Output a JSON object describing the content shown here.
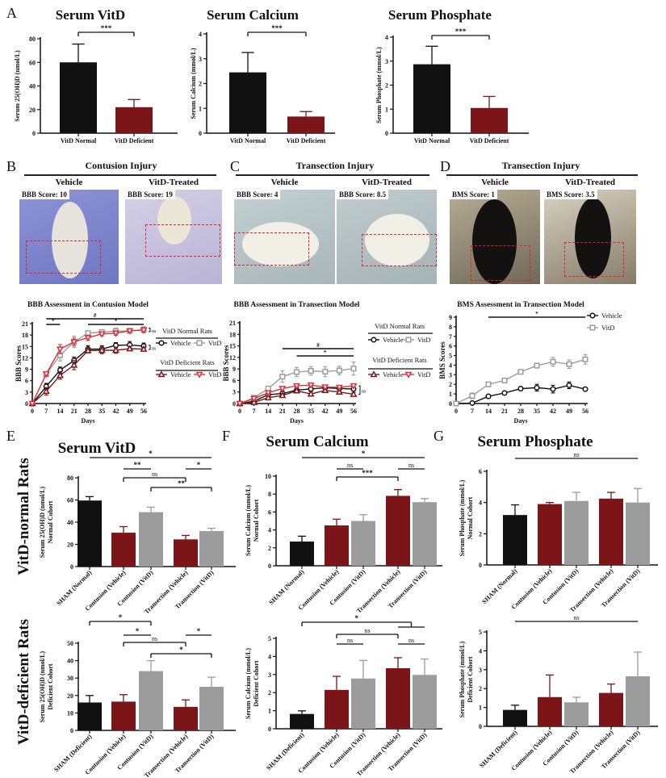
{
  "panel_letters": [
    "A",
    "B",
    "C",
    "D",
    "E",
    "F",
    "G"
  ],
  "row_labels": [
    "VitD-normal Rats",
    "VitD-deficient Rats"
  ],
  "colors": {
    "normal": "#111111",
    "deficient": "#7b1518",
    "vitd_grey": "#9c9c9c",
    "vitd_red": "#d8343c",
    "roi": "#e0202a"
  },
  "photos": [
    {
      "heading": "Contusion Injury",
      "items": [
        {
          "condition": "Vehicle",
          "score": "BBB Score: 10"
        },
        {
          "condition": "VitD-Treated",
          "score": "BBB Score: 19"
        }
      ]
    },
    {
      "heading": "Transection Injury",
      "items": [
        {
          "condition": "Vehicle",
          "score": "BBB Score: 4"
        },
        {
          "condition": "VitD-Treated",
          "score": "BBB Score: 8.5"
        }
      ]
    },
    {
      "heading": "Transection Injury",
      "items": [
        {
          "condition": "Vehicle",
          "score": "BMS Score: 1"
        },
        {
          "condition": "VitD-Treated",
          "score": "BMS Score: 3.5"
        }
      ]
    }
  ],
  "chart_data": [
    {
      "type": "bar",
      "title": "Serum VitD",
      "ylabel": [
        "Serum 25(OH)D (nmol/L)"
      ],
      "categories": [
        "VitD Normal",
        "VitD Deficient"
      ],
      "values": [
        60,
        22
      ],
      "errors": [
        15.5,
        6.5
      ],
      "bar_colors": [
        "normal",
        "deficient"
      ],
      "ylim": [
        0,
        80
      ],
      "yticks": [
        0,
        20,
        40,
        60,
        80
      ],
      "annotations": [
        {
          "from": 0,
          "to": 1,
          "label": "***",
          "style": "bracket"
        }
      ]
    },
    {
      "type": "bar",
      "title": "Serum Calcium",
      "ylabel": [
        "Serum Calcium (mmol/L)"
      ],
      "categories": [
        "VitD Normal",
        "VitD Deficient"
      ],
      "values": [
        2.45,
        0.67
      ],
      "errors": [
        0.8,
        0.2
      ],
      "bar_colors": [
        "normal",
        "deficient"
      ],
      "ylim": [
        0,
        4
      ],
      "yticks": [
        0,
        1,
        2,
        3,
        4
      ],
      "annotations": [
        {
          "from": 0,
          "to": 1,
          "label": "***",
          "style": "bracket"
        }
      ]
    },
    {
      "type": "bar",
      "title": "Serum Phosphate",
      "ylabel": [
        "Serum Phosphate (mmol/L)"
      ],
      "categories": [
        "VitD Normal",
        "VitD Deficient"
      ],
      "values": [
        2.87,
        1.05
      ],
      "errors": [
        0.75,
        0.48
      ],
      "bar_colors": [
        "normal",
        "deficient"
      ],
      "ylim": [
        0,
        4
      ],
      "yticks": [
        0,
        1,
        2,
        3,
        4
      ],
      "annotations": [
        {
          "from": 0,
          "to": 1,
          "label": "***",
          "style": "bracket"
        }
      ]
    },
    {
      "type": "line",
      "title": "BBB Assessment in Contusion Model",
      "xlabel": "Days",
      "ylabel": "BBB Scores",
      "x": [
        0,
        7,
        14,
        21,
        28,
        35,
        42,
        49,
        56
      ],
      "xlim": [
        0,
        56
      ],
      "ylim": [
        0,
        21
      ],
      "yticks": [
        0,
        3,
        6,
        9,
        12,
        15,
        18,
        21
      ],
      "legend_groups": [
        {
          "title": "VitD Normal Rats",
          "series": [
            0,
            1
          ]
        },
        {
          "title": "VitD Deficient Rats",
          "series": [
            2,
            3
          ]
        }
      ],
      "series": [
        {
          "name": "Vehicle",
          "color": "normal",
          "marker": "circle",
          "y": [
            0,
            4.5,
            8.8,
            11.3,
            14.3,
            14.3,
            15.3,
            15.4,
            15.1
          ],
          "err": [
            0.3,
            0.8,
            0.8,
            0.9,
            0.9,
            0.9,
            0.7,
            0.9,
            0.8
          ]
        },
        {
          "name": "VitD",
          "color": "vitd_grey",
          "marker": "square",
          "y": [
            0,
            7.7,
            12.7,
            16.2,
            18.5,
            18.8,
            19.0,
            19.1,
            19.4
          ],
          "err": [
            0.3,
            0.6,
            1.5,
            1.5,
            0.5,
            0.6,
            0.8,
            0.5,
            0.8
          ]
        },
        {
          "name": "Vehicle",
          "color": "deficient",
          "marker": "triangle",
          "y": [
            0,
            3.2,
            7.4,
            10.1,
            13.9,
            14.0,
            14.0,
            14.4,
            14.3
          ],
          "err": [
            0.3,
            1.0,
            1.0,
            1.2,
            0.6,
            0.9,
            0.8,
            0.5,
            0.5
          ]
        },
        {
          "name": "VitD",
          "color": "vitd_red",
          "marker": "triangle-down",
          "y": [
            0,
            7.8,
            14.3,
            16.2,
            17.3,
            18.3,
            18.5,
            19.1,
            19.3
          ],
          "err": [
            0.3,
            0.6,
            1.2,
            1.0,
            0.7,
            0.5,
            0.6,
            0.5,
            0.6
          ]
        }
      ],
      "annotations": [
        {
          "from_x": 7,
          "to_x": 14,
          "label": "*"
        },
        {
          "from_x": 7,
          "to_x": 56,
          "label": "#"
        },
        {
          "from_x": 28,
          "to_x": 56,
          "label": "*"
        }
      ],
      "side_annotations": [
        {
          "y_range": [
            18.9,
            19.8
          ],
          "label": "ns"
        },
        {
          "y_range": [
            14.2,
            15.3
          ],
          "label": "ns"
        }
      ]
    },
    {
      "type": "line",
      "title": "BBB Assessment in Transection Model",
      "xlabel": "Days",
      "ylabel": "BBB Scores",
      "x": [
        0,
        7,
        14,
        21,
        28,
        35,
        42,
        49,
        56
      ],
      "xlim": [
        0,
        56
      ],
      "ylim": [
        0,
        21
      ],
      "yticks": [
        0,
        3,
        6,
        9,
        12,
        15,
        18,
        21
      ],
      "legend_groups": [
        {
          "title": "VitD Normal Rats",
          "series": [
            0,
            1
          ]
        },
        {
          "title": "VitD Deficient Rats",
          "series": [
            2,
            3
          ]
        }
      ],
      "series": [
        {
          "name": "Vehicle",
          "color": "normal",
          "marker": "circle",
          "y": [
            0,
            0.6,
            2.3,
            2.6,
            3.5,
            3.8,
            4.1,
            3.9,
            3.8
          ],
          "err": [
            0.2,
            0.3,
            0.5,
            0.6,
            0.5,
            0.6,
            0.5,
            0.5,
            0.5
          ]
        },
        {
          "name": "VitD",
          "color": "vitd_grey",
          "marker": "square",
          "y": [
            0,
            1.5,
            3.9,
            7.0,
            8.2,
            8.5,
            8.3,
            8.6,
            9.1
          ],
          "err": [
            0.2,
            0.4,
            0.5,
            1.5,
            1.2,
            1.1,
            1.3,
            1.1,
            1.7
          ]
        },
        {
          "name": "Vehicle",
          "color": "deficient",
          "marker": "triangle",
          "y": [
            0,
            0.3,
            1.5,
            2.1,
            3.3,
            2.5,
            3.4,
            3.0,
            2.4
          ],
          "err": [
            0.2,
            0.3,
            0.4,
            0.5,
            0.5,
            0.6,
            0.5,
            0.5,
            0.5
          ]
        },
        {
          "name": "VitD",
          "color": "vitd_red",
          "marker": "triangle-down",
          "y": [
            0,
            1.3,
            2.8,
            3.9,
            4.6,
            4.8,
            4.3,
            4.2,
            4.6
          ],
          "err": [
            0.2,
            0.3,
            0.4,
            0.4,
            0.4,
            0.4,
            0.4,
            0.4,
            0.4
          ]
        }
      ],
      "annotations": [
        {
          "from_x": 21,
          "to_x": 56,
          "label": "#"
        },
        {
          "from_x": 28,
          "to_x": 56,
          "label": "*"
        }
      ],
      "side_annotations": [
        {
          "y_range": [
            2.4,
            4.6
          ],
          "label": "ns"
        }
      ]
    },
    {
      "type": "line",
      "title": "BMS Assessment in Transection Model",
      "xlabel": "Days",
      "ylabel": "BMS Scores",
      "x": [
        0,
        7,
        14,
        21,
        28,
        35,
        42,
        49,
        56
      ],
      "xlim": [
        0,
        56
      ],
      "ylim": [
        0,
        9
      ],
      "yticks": [
        0,
        1,
        2,
        3,
        4,
        5,
        6,
        7,
        8,
        9
      ],
      "legend_groups": [
        {
          "title": "",
          "series": [
            0,
            1
          ]
        }
      ],
      "series": [
        {
          "name": "Vehicle",
          "color": "normal",
          "marker": "circle",
          "y": [
            0,
            0.05,
            0.75,
            1.1,
            1.55,
            1.65,
            1.5,
            1.9,
            1.5
          ],
          "err": [
            0.05,
            0.1,
            0.2,
            0.1,
            0.1,
            0.35,
            0.4,
            0.35,
            0.15
          ]
        },
        {
          "name": "VitD",
          "color": "vitd_grey",
          "marker": "square",
          "y": [
            0,
            0.8,
            2.0,
            2.4,
            3.3,
            3.95,
            4.35,
            4.1,
            4.6
          ],
          "err": [
            0.05,
            0.3,
            0.2,
            0.1,
            0.2,
            0.2,
            0.45,
            0.45,
            0.5
          ]
        }
      ],
      "annotations": [
        {
          "from_x": 14,
          "to_x": 56,
          "label": "*"
        }
      ],
      "side_annotations": []
    },
    {
      "type": "bar",
      "title": "Serum VitD",
      "ylabel": [
        "Serum 25(OH)D (nmol/L)",
        "Normal Cohort"
      ],
      "categories": [
        "SHAM (Normal)",
        "Contusion (Vehicle)",
        "Contusion (VitD)",
        "Transection (Vehicle)",
        "Transection (VitD)"
      ],
      "values": [
        59.5,
        30.5,
        49,
        24.5,
        32
      ],
      "errors": [
        3.5,
        5.5,
        4.5,
        3.5,
        2.5
      ],
      "bar_colors": [
        "normal",
        "deficient",
        "vitd_grey",
        "deficient",
        "vitd_grey"
      ],
      "ylim": [
        0,
        80
      ],
      "yticks": [
        0,
        20,
        40,
        60,
        80
      ],
      "annotations": [
        {
          "from": 0,
          "to": 4,
          "label": "*",
          "style": "line"
        },
        {
          "from": 1,
          "to": 2,
          "label": "**",
          "style": "line"
        },
        {
          "from": 3,
          "to": 4,
          "label": "*",
          "style": "line"
        },
        {
          "from": 1,
          "to": 3,
          "label": "ns",
          "style": "bracket"
        },
        {
          "from": 2,
          "to": 4,
          "label": "**",
          "style": "bracket"
        }
      ]
    },
    {
      "type": "bar",
      "title": "Serum Calcium",
      "ylabel": [
        "Serum Calcium (mmol/L)",
        "Normal Cohort"
      ],
      "categories": [
        "SHAM (Normal)",
        "Contusion (Vehicle)",
        "Contusion (VitD)",
        "Transection (Vehicle)",
        "Transection (VitD)"
      ],
      "values": [
        2.7,
        4.5,
        5.0,
        7.8,
        7.1
      ],
      "errors": [
        0.6,
        0.7,
        0.7,
        0.7,
        0.4
      ],
      "bar_colors": [
        "normal",
        "deficient",
        "vitd_grey",
        "deficient",
        "vitd_grey"
      ],
      "ylim": [
        0,
        10
      ],
      "yticks": [
        0,
        2,
        4,
        6,
        8,
        10
      ],
      "annotations": [
        {
          "from": 0,
          "to": 4,
          "label": "*",
          "style": "line"
        },
        {
          "from": 1,
          "to": 2,
          "label": "ns",
          "style": "line"
        },
        {
          "from": 3,
          "to": 4,
          "label": "ns",
          "style": "line"
        },
        {
          "from": 1,
          "to": 3,
          "label": "***",
          "style": "bracket"
        }
      ]
    },
    {
      "type": "bar",
      "title": "Serum Phosphate",
      "ylabel": [
        "Serum Phosphate (mmol/L)",
        "Normal Cohort"
      ],
      "categories": [
        "SHAM (Normal)",
        "Contusion (Vehicle)",
        "Contusion (VitD)",
        "Transection (Vehicle)",
        "Transection (VitD)"
      ],
      "values": [
        3.2,
        3.9,
        4.1,
        4.25,
        4.0
      ],
      "errors": [
        0.65,
        0.1,
        0.55,
        0.4,
        0.9
      ],
      "bar_colors": [
        "normal",
        "deficient",
        "vitd_grey",
        "deficient",
        "vitd_grey"
      ],
      "ylim": [
        0,
        6
      ],
      "yticks": [
        0,
        2,
        4,
        6
      ],
      "annotations": [
        {
          "from": 0,
          "to": 4,
          "label": "ns",
          "style": "line"
        }
      ]
    },
    {
      "type": "bar",
      "title": "",
      "ylabel": [
        "Serum 25(OH)D (nmol/L)",
        "Deficient Cohort"
      ],
      "categories": [
        "SHAM (Deficient)",
        "Contusion (Vehicle)",
        "Contusion (VitD)",
        "Transection (Vehicle)",
        "Transection (VitD)"
      ],
      "values": [
        16,
        16.5,
        34,
        13.5,
        25
      ],
      "errors": [
        4,
        4,
        6,
        4,
        5.5
      ],
      "bar_colors": [
        "normal",
        "deficient",
        "vitd_grey",
        "deficient",
        "vitd_grey"
      ],
      "ylim": [
        0,
        50
      ],
      "yticks": [
        0,
        10,
        20,
        30,
        40,
        50
      ],
      "annotations": [
        {
          "from": 0,
          "to": 2,
          "label": "*",
          "style": "bracket"
        },
        {
          "from": 1,
          "to": 2,
          "label": "*",
          "style": "line"
        },
        {
          "from": 3,
          "to": 4,
          "label": "*",
          "style": "line"
        },
        {
          "from": 1,
          "to": 3,
          "label": "ns",
          "style": "bracket"
        },
        {
          "from": 2,
          "to": 4,
          "label": "*",
          "style": "bracket"
        }
      ]
    },
    {
      "type": "bar",
      "title": "",
      "ylabel": [
        "Serum Calcium (mmol/L)",
        "Deficient Cohort"
      ],
      "categories": [
        "SHAM (Deficient)",
        "Contusion (Vehicle)",
        "Contusion (VitD)",
        "Transection (Vehicle)",
        "Transection (VitD)"
      ],
      "values": [
        0.82,
        2.15,
        2.78,
        3.35,
        2.98
      ],
      "errors": [
        0.17,
        0.75,
        1.0,
        0.58,
        0.88
      ],
      "bar_colors": [
        "normal",
        "deficient",
        "vitd_grey",
        "deficient",
        "vitd_grey"
      ],
      "ylim": [
        0,
        5
      ],
      "yticks": [
        0,
        1,
        2,
        3,
        4,
        5
      ],
      "annotations": [
        {
          "from": 0,
          "to": [
            3,
            4
          ],
          "label": "*",
          "style": "bracket"
        },
        {
          "from": 1,
          "to": 3,
          "label": "ns",
          "style": "bracket"
        },
        {
          "from": 1,
          "to": 2,
          "label": "ns",
          "style": "line"
        },
        {
          "from": 3,
          "to": 4,
          "label": "ns",
          "style": "line"
        }
      ]
    },
    {
      "type": "bar",
      "title": "",
      "ylabel": [
        "Serum Phosphate (mmol/L)",
        "Deficient Cohort"
      ],
      "categories": [
        "SHAM (Deficient)",
        "Contusion (Vehicle)",
        "Contusion (VitD)",
        "Transection (Vehicle)",
        "Transection (VitD)"
      ],
      "values": [
        0.87,
        1.55,
        1.27,
        1.77,
        2.65
      ],
      "errors": [
        0.25,
        1.17,
        0.27,
        0.47,
        1.28
      ],
      "bar_colors": [
        "normal",
        "deficient",
        "vitd_grey",
        "deficient",
        "vitd_grey"
      ],
      "ylim": [
        0,
        5
      ],
      "yticks": [
        0,
        1,
        2,
        3,
        4,
        5
      ],
      "annotations": [
        {
          "from": 0,
          "to": 4,
          "label": "ns",
          "style": "line"
        }
      ]
    }
  ]
}
